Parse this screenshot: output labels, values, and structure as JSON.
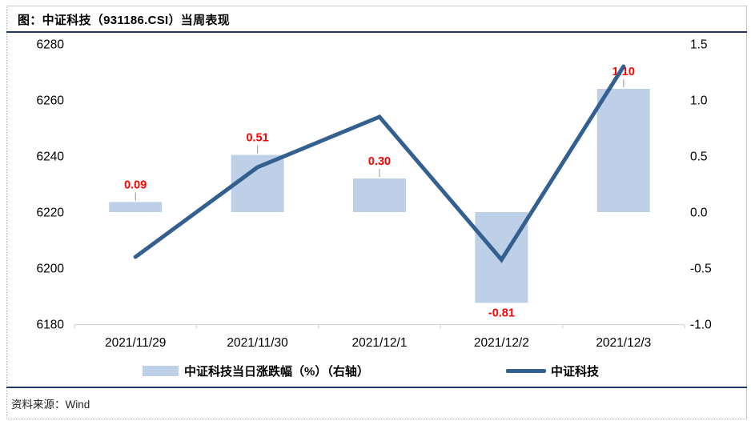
{
  "title": "图：中证科技（931186.CSI）当周表现",
  "footer": {
    "source": "资料来源：Wind"
  },
  "legend": {
    "bar_label": "中证科技当日涨跌幅（%）（右轴）",
    "line_label": "中证科技"
  },
  "chart_data": {
    "type": "combo",
    "title": "图：中证科技（931186.CSI）当周表现",
    "categories": [
      "2021/11/29",
      "2021/11/30",
      "2021/12/1",
      "2021/12/2",
      "2021/12/3"
    ],
    "series": [
      {
        "name": "中证科技当日涨跌幅（%）（右轴）",
        "type": "bar",
        "axis": "right",
        "values": [
          0.09,
          0.51,
          0.3,
          -0.81,
          1.1
        ],
        "labels": [
          "0.09",
          "0.51",
          "0.30",
          "-0.81",
          "1.10"
        ]
      },
      {
        "name": "中证科技",
        "type": "line",
        "axis": "left",
        "values": [
          6204,
          6236,
          6254,
          6203,
          6272
        ]
      }
    ],
    "left_axis": {
      "min": 6180,
      "max": 6280,
      "tick_labels": [
        "6280",
        "6260",
        "6240",
        "6220",
        "6200",
        "6180"
      ]
    },
    "right_axis": {
      "min": -1.0,
      "max": 1.5,
      "tick_labels": [
        "1.5",
        "1.0",
        "0.5",
        "0.0",
        "-0.5",
        "-1.0"
      ]
    },
    "grid": false,
    "legend_position": "bottom",
    "colors": {
      "bar_fill": "#BDD0E8",
      "line": "#34608F",
      "data_label": "#FF0000",
      "axis_line": "#D9D9D9",
      "leader": "#A6A6A6",
      "rule": "#1F3864",
      "axis_text": "#000000"
    }
  }
}
